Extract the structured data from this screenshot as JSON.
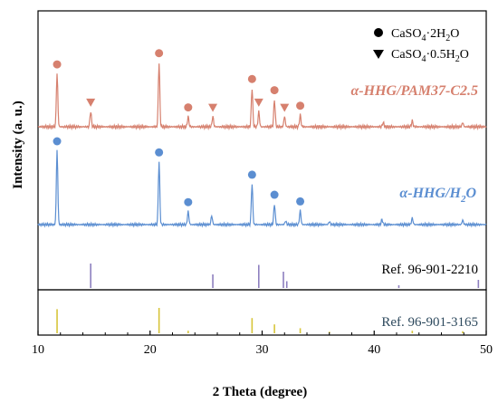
{
  "chart_data": {
    "type": "line",
    "xlabel": "2 Theta (degree)",
    "ylabel": "Intensity (a. u.)",
    "xlim": [
      10,
      50
    ],
    "xticks": [
      10,
      20,
      30,
      40,
      50
    ],
    "legend": {
      "placement": "top-right",
      "entries": [
        {
          "marker": "circle",
          "label": "CaSO",
          "sub1": "4",
          "mid": "·2H",
          "sub2": "2",
          "tail": "O"
        },
        {
          "marker": "triangle-down",
          "label": "CaSO",
          "sub1": "4",
          "mid": "·0.5H",
          "sub2": "2",
          "tail": "O"
        }
      ]
    },
    "series": [
      {
        "name_main": "α-HHG/PAM37-C2.5",
        "color": "#d6806e",
        "peaks": [
          {
            "x": 11.7,
            "h": 0.62,
            "marker": "circle"
          },
          {
            "x": 14.7,
            "h": 0.18,
            "marker": "triangle-down"
          },
          {
            "x": 20.8,
            "h": 0.75,
            "marker": "circle"
          },
          {
            "x": 23.4,
            "h": 0.12,
            "marker": "circle"
          },
          {
            "x": 25.6,
            "h": 0.12,
            "marker": "triangle-down"
          },
          {
            "x": 29.1,
            "h": 0.45,
            "marker": "circle"
          },
          {
            "x": 29.7,
            "h": 0.18,
            "marker": "triangle-down"
          },
          {
            "x": 31.1,
            "h": 0.32,
            "marker": "circle"
          },
          {
            "x": 32.0,
            "h": 0.12,
            "marker": "triangle-down"
          },
          {
            "x": 33.4,
            "h": 0.14,
            "marker": "circle"
          },
          {
            "x": 40.8,
            "h": 0.05,
            "marker": ""
          },
          {
            "x": 43.4,
            "h": 0.07,
            "marker": ""
          },
          {
            "x": 47.9,
            "h": 0.05,
            "marker": ""
          }
        ]
      },
      {
        "name_main": "α-HHG/H",
        "name_sub": "2",
        "name_tail": "O",
        "color": "#5b8ed1",
        "peaks": [
          {
            "x": 11.7,
            "h": 1.0,
            "marker": "circle"
          },
          {
            "x": 20.8,
            "h": 0.85,
            "marker": "circle"
          },
          {
            "x": 23.4,
            "h": 0.18,
            "marker": "circle"
          },
          {
            "x": 25.5,
            "h": 0.12,
            "marker": ""
          },
          {
            "x": 29.1,
            "h": 0.55,
            "marker": "circle"
          },
          {
            "x": 31.1,
            "h": 0.28,
            "marker": "circle"
          },
          {
            "x": 32.1,
            "h": 0.05,
            "marker": ""
          },
          {
            "x": 33.4,
            "h": 0.19,
            "marker": "circle"
          },
          {
            "x": 36.0,
            "h": 0.04,
            "marker": ""
          },
          {
            "x": 40.7,
            "h": 0.07,
            "marker": ""
          },
          {
            "x": 43.4,
            "h": 0.09,
            "marker": ""
          },
          {
            "x": 47.9,
            "h": 0.06,
            "marker": ""
          }
        ]
      }
    ],
    "references": [
      {
        "name": "Ref. 96-901-2210",
        "color": "#8d7fbf",
        "lines": [
          {
            "x": 14.7,
            "h": 0.9
          },
          {
            "x": 25.6,
            "h": 0.5
          },
          {
            "x": 29.7,
            "h": 0.85
          },
          {
            "x": 31.9,
            "h": 0.6
          },
          {
            "x": 32.2,
            "h": 0.25
          },
          {
            "x": 42.2,
            "h": 0.1
          },
          {
            "x": 49.3,
            "h": 0.3
          }
        ]
      },
      {
        "name": "Ref. 96-901-3165",
        "color": "#d7c53a",
        "lines": [
          {
            "x": 11.7,
            "h": 0.95
          },
          {
            "x": 20.8,
            "h": 1.0
          },
          {
            "x": 23.4,
            "h": 0.1
          },
          {
            "x": 29.1,
            "h": 0.6
          },
          {
            "x": 31.1,
            "h": 0.35
          },
          {
            "x": 33.4,
            "h": 0.2
          },
          {
            "x": 36.0,
            "h": 0.06
          },
          {
            "x": 43.4,
            "h": 0.1
          },
          {
            "x": 47.9,
            "h": 0.08
          }
        ]
      }
    ]
  }
}
